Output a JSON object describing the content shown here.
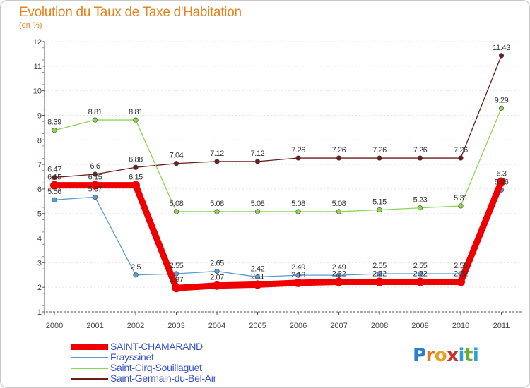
{
  "chart_data": {
    "type": "line",
    "title": "Evolution du Taux de Taxe d'Habitation",
    "subtitle": "(en %)",
    "xlabel": "",
    "ylabel": "",
    "ylim": [
      1,
      12
    ],
    "yticks": [
      1,
      2,
      3,
      4,
      5,
      6,
      7,
      8,
      9,
      10,
      11,
      12
    ],
    "categories": [
      "2000",
      "2001",
      "2002",
      "2003",
      "2004",
      "2005",
      "2006",
      "2007",
      "2008",
      "2009",
      "2010",
      "2011"
    ],
    "series": [
      {
        "name": "SAINT-CHAMARAND",
        "color": "#ee0000",
        "values": [
          6.15,
          6.15,
          6.15,
          1.97,
          2.07,
          2.11,
          2.18,
          2.22,
          2.22,
          2.22,
          2.22,
          6.3
        ],
        "labels": [
          "6.15",
          "6.15",
          "6.15",
          "1.97",
          "2.07",
          "2.11",
          "2.18",
          "2.22",
          "2.22",
          "2.22",
          "2.22",
          "6.3"
        ]
      },
      {
        "name": "Frayssinet",
        "color": "#5b9bd5",
        "values": [
          5.56,
          5.67,
          2.5,
          2.55,
          2.65,
          2.42,
          2.49,
          2.49,
          2.55,
          2.55,
          2.55,
          5.96
        ],
        "labels": [
          "5.56",
          "5.67",
          "2.5",
          "2.55",
          "2.65",
          "2.42",
          "2.49",
          "2.49",
          "2.55",
          "2.55",
          "2.55",
          "5.96"
        ]
      },
      {
        "name": "Saint-Cirq-Souillaguet",
        "color": "#8ed557",
        "values": [
          8.39,
          8.81,
          8.81,
          5.08,
          5.08,
          5.08,
          5.08,
          5.08,
          5.15,
          5.23,
          5.31,
          9.29
        ],
        "labels": [
          "8.39",
          "8.81",
          "8.81",
          "5.08",
          "5.08",
          "5.08",
          "5.08",
          "5.08",
          "5.15",
          "5.23",
          "5.31",
          "9.29"
        ]
      },
      {
        "name": "Saint-Germain-du-Bel-Air",
        "color": "#6b1e1e",
        "values": [
          6.47,
          6.6,
          6.88,
          7.04,
          7.12,
          7.12,
          7.26,
          7.26,
          7.26,
          7.26,
          7.26,
          11.43
        ],
        "labels": [
          "6.47",
          "6.6",
          "6.88",
          "7.04",
          "7.12",
          "7.12",
          "7.26",
          "7.26",
          "7.26",
          "7.26",
          "7.26",
          "11.43"
        ]
      }
    ]
  },
  "legend": {
    "items": [
      "SAINT-CHAMARAND",
      "Frayssinet",
      "Saint-Cirq-Souillaguet",
      "Saint-Germain-du-Bel-Air"
    ]
  },
  "brand": {
    "letters": [
      "P",
      "r",
      "o",
      "x",
      "i",
      "t",
      "i"
    ],
    "colors": [
      "#2b7fd0",
      "#e07a1f",
      "#e8a020",
      "#c8322e",
      "#2b9fd8",
      "#6ab02e",
      "#2b9fd8"
    ]
  }
}
